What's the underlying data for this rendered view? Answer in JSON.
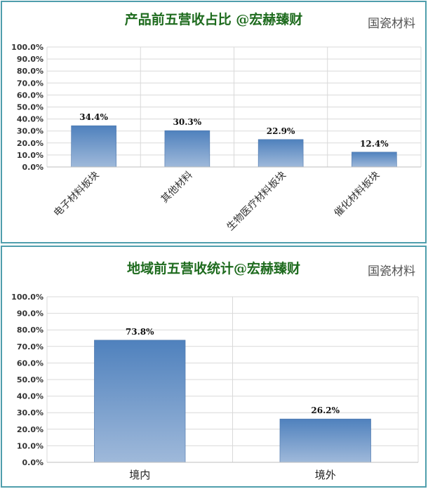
{
  "chart_data": [
    {
      "type": "bar",
      "title": "产品前五营收占比 @宏赫臻财",
      "watermark": "国瓷材料",
      "categories": [
        "电子材料板块",
        "其他材料",
        "生物医疗材料板块",
        "催化材料板块"
      ],
      "values": [
        34.4,
        30.3,
        22.9,
        12.4
      ],
      "data_labels": [
        "34.4%",
        "30.3%",
        "22.9%",
        "12.4%"
      ],
      "yticks": [
        "0.0%",
        "10.0%",
        "20.0%",
        "30.0%",
        "40.0%",
        "50.0%",
        "60.0%",
        "70.0%",
        "80.0%",
        "90.0%",
        "100.0%"
      ],
      "ylim": [
        0,
        100
      ],
      "xlabel": "",
      "ylabel": "",
      "grid": true,
      "bar_color_top": "#4f81bd",
      "bar_color_bottom": "#9fb9da"
    },
    {
      "type": "bar",
      "title": "地域前五营收统计@宏赫臻财",
      "watermark": "国瓷材料",
      "categories": [
        "境内",
        "境外"
      ],
      "values": [
        73.8,
        26.2
      ],
      "data_labels": [
        "73.8%",
        "26.2%"
      ],
      "yticks": [
        "0.0%",
        "10.0%",
        "20.0%",
        "30.0%",
        "40.0%",
        "50.0%",
        "60.0%",
        "70.0%",
        "80.0%",
        "90.0%",
        "100.0%"
      ],
      "ylim": [
        0,
        100
      ],
      "xlabel": "",
      "ylabel": "",
      "grid": true,
      "bar_color_top": "#4f81bd",
      "bar_color_bottom": "#9fb9da"
    }
  ],
  "colors": {
    "title": "#1e6b1e",
    "panel_border": "#4f9eac",
    "grid": "#d9d9d9"
  }
}
